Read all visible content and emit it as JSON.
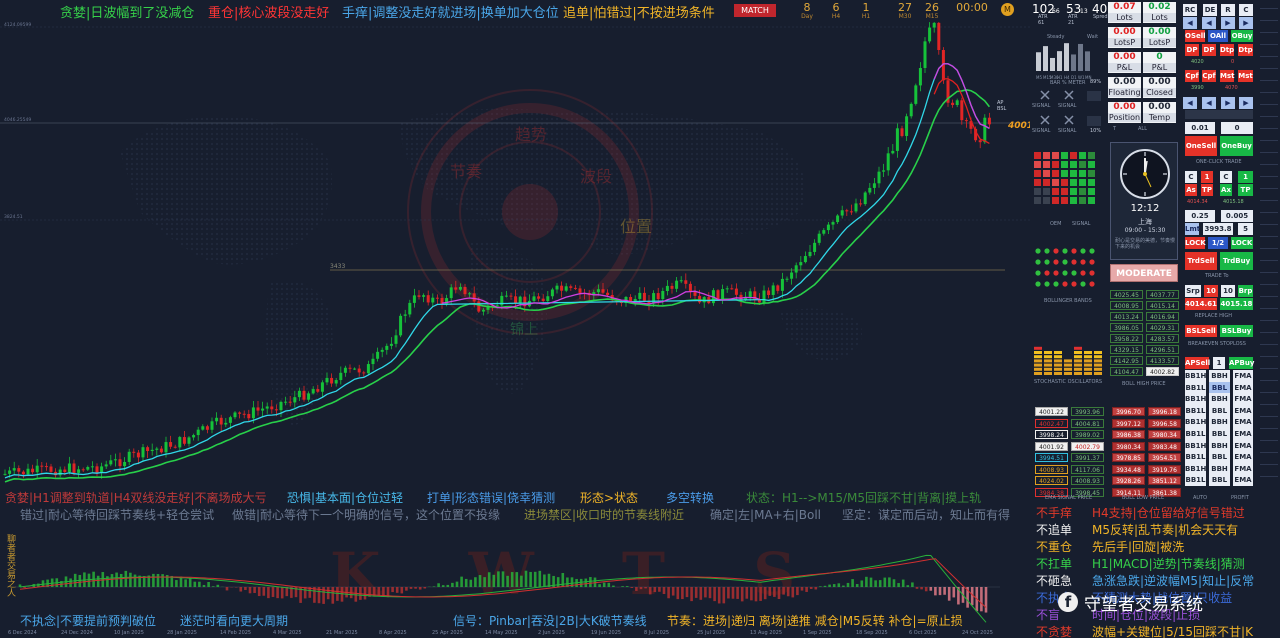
{
  "top_messages": [
    {
      "text": "贪婪|日波幅到了没减仓",
      "color": "#36d14a"
    },
    {
      "text": "重仓|核心波段没走好",
      "color": "#ff3535"
    },
    {
      "text": "手痒|调整没走好就进场|换单加大仓位",
      "color": "#4aa6e8"
    },
    {
      "text": "追单|怕错过|不按进场条件",
      "color": "#f0b428"
    }
  ],
  "match_label": "MATCH",
  "counters": [
    {
      "value": "8",
      "label": "Day"
    },
    {
      "value": "6",
      "label": "H4"
    },
    {
      "value": "1",
      "label": "H1"
    },
    {
      "value": "27",
      "label": "M30"
    },
    {
      "value": "26",
      "label": "M15"
    },
    {
      "value": "00:00",
      "label": ""
    }
  ],
  "spread_readouts": [
    {
      "value": "102",
      "sub": "66",
      "label": "ATR 61"
    },
    {
      "value": "53",
      "sub": "13",
      "label": "ATR 21"
    },
    {
      "value": "40",
      "sub": "",
      "label": "Spred"
    }
  ],
  "main_chart": {
    "price_labels": [
      "4124.09599",
      "4046.25549",
      "4001",
      "3824.51",
      "3433"
    ],
    "current_price_tag": "4001",
    "level_label": "3433",
    "watermark_ring_text": [
      "节奏",
      "趋势",
      "波段",
      "位置"
    ],
    "watermark_bottom": "锦上",
    "line_labels": [
      "AP",
      "BSL"
    ]
  },
  "strip1": [
    {
      "text": "贪婪|H1调整到轨道|H4双线没走好|不离场成大亏",
      "color": "#c03a3a"
    },
    {
      "text": "恐惧|基本面|仓位过轻",
      "color": "#47b8e8"
    },
    {
      "text": "打单|形态错误|侥幸猜测",
      "color": "#4a9be8"
    },
    {
      "text": "形态>状态",
      "color": "#f0b428"
    },
    {
      "text": "多空转换",
      "color": "#4a9be8"
    },
    {
      "text": "状态：H1-->M15/M5回踩不甘|背离|摸上轨",
      "color": "#3a8a3a"
    }
  ],
  "strip2": [
    {
      "text": "错过|耐心等待回踩节奏线+轻仓尝试",
      "color": "#6c7a92"
    },
    {
      "text": "做错|耐心等待下一个明确的信号，这个位置不投缘",
      "color": "#6c7a92"
    },
    {
      "text": "进场禁区|收口时的节奏线附近",
      "color": "#8a8a3a"
    },
    {
      "text": "确定|左|MA+右|Boll",
      "color": "#6c7a92"
    },
    {
      "text": "坚定：谋定而后动，知止而有得",
      "color": "#6c7a92"
    }
  ],
  "osc_legend": [
    {
      "l": "不手痒",
      "r": "H4支持|仓位留给好信号错过",
      "lc": "#e03a2a",
      "rc": "#e03a2a"
    },
    {
      "l": "不追单",
      "r": "M5反转|乱节奏|机会天天有",
      "lc": "#f0f0f0",
      "rc": "#f0b428"
    },
    {
      "l": "不重仓",
      "r": "先后手|回旋|被洗",
      "lc": "#f0b428",
      "rc": "#f0b428"
    },
    {
      "l": "不扛单",
      "r": "H1|MACD|逆势|节奏线|猜测",
      "lc": "#36d14a",
      "rc": "#36d14a"
    },
    {
      "l": "不砸急",
      "r": "急涨急跌|逆波幅M5|知止|反常",
      "lc": "#f0f0f0",
      "rc": "#4aa6e8"
    },
    {
      "l": "不执念",
      "r": "不猜测大势|战位置|只收益",
      "lc": "#3a6ad8",
      "rc": "#3a6ad8"
    },
    {
      "l": "不盲",
      "r": "时间|仓位|波段|止损",
      "lc": "#9a50d8",
      "rc": "#9a50d8"
    },
    {
      "l": "不贪婪",
      "r": "波幅+关键位|5/15回踩不甘|K",
      "lc": "#e03a2a",
      "rc": "#f0b428"
    }
  ],
  "bottom_msgs": [
    {
      "text": "不执念|不要提前预判破位",
      "color": "#4aa6e8"
    },
    {
      "text": "迷茫时看向更大周期",
      "color": "#4aa6e8"
    },
    {
      "text": "信号：Pinbar|吞没|2B|大K破节奏线",
      "color": "#4aa6e8"
    },
    {
      "text": "节奏：进场|递归 离场|递推 减仓|M5反转 补仓|=原止损 ",
      "color": "#f0b428"
    }
  ],
  "osc_vertical_text": "聊者者交易之人",
  "dates": [
    "6 Dec 2024",
    "24 Dec 2024",
    "10 Jan 2025",
    "28 Jan 2025",
    "14 Feb 2025",
    "4 Mar 2025",
    "21 Mar 2025",
    "8 Apr 2025",
    "25 Apr 2025",
    "14 May 2025",
    "2 Jun 2025",
    "19 Jun 2025",
    "8 Jul 2025",
    "25 Jul 2025",
    "13 Aug 2025",
    "1 Sep 2025",
    "18 Sep 2025",
    "6 Oct 2025",
    "24 Oct 2025"
  ],
  "watermark_brand": "守望者交易系统",
  "osc_watermark": "K W T S",
  "right_panel": {
    "heat_header": [
      "Steady",
      "Wait"
    ],
    "heat_bar_labels": [
      "M5",
      "M15",
      "M30",
      "H1",
      "H4",
      "D1",
      "W1",
      "MN"
    ],
    "bar_meter": "BAR % METER",
    "signal_lbls": [
      "SIGNAL",
      "SIGNAL",
      "SIGNAL",
      "SIGNAL"
    ],
    "signal_meter_vals": [
      "89%",
      "10%"
    ],
    "grid_label": "OEM",
    "signal_label": "SIGNAL",
    "bollinger_label": "BOLLINGER BANDS",
    "stochastic_label": "STOCHASTIC OSCILLATORS",
    "ema_label": "EMA SIGNAL PRICE",
    "boll_label": "BOLL LOW PRICE",
    "boll_high_label": "BOLL HIGH PRICE",
    "account_boxes": [
      {
        "v": "0.07",
        "k": "Lots",
        "cls": "red"
      },
      {
        "v": "0.02",
        "k": "Lots",
        "cls": "green"
      },
      {
        "v": "0.00",
        "k": "LotsP",
        "cls": "red"
      },
      {
        "v": "0.00",
        "k": "LotsP",
        "cls": "green"
      },
      {
        "v": "0.00",
        "k": "P&L",
        "cls": "red"
      },
      {
        "v": "0",
        "k": "P&L",
        "cls": "green"
      },
      {
        "v": "0.00",
        "k": "Floating",
        "cls": ""
      },
      {
        "v": "0.00",
        "k": "Closed",
        "cls": ""
      },
      {
        "v": "0.00",
        "k": "Position",
        "cls": "red"
      },
      {
        "v": "0.00",
        "k": "Temp",
        "cls": ""
      }
    ],
    "all_label": "ALL",
    "row_t": "T",
    "clock_time": "12:12",
    "clock_city": "上海",
    "clock_session": "09:00 - 15:30",
    "clock_note": "耐心是交易的美德，节奏慢下来的机会",
    "moderate": "MODERATE",
    "boll_prices_left": [
      "4025.45",
      "4008.95",
      "4013.24",
      "3986.05",
      "3958.22",
      "4329.15",
      "4142.95",
      "4104.47"
    ],
    "boll_prices_right": [
      "4037.77",
      "4015.14",
      "4016.94",
      "4029.31",
      "4283.57",
      "4296.51",
      "4133.57",
      "4002.82"
    ],
    "ema_table": {
      "c1": [
        "4001.22",
        "4002.47",
        "3998.24",
        "4001.92",
        "3994.51",
        "4008.93",
        "4024.02",
        "3984.38"
      ],
      "c2": [
        "3993.96",
        "4004.81",
        "3989.02",
        "4002.79",
        "3991.37",
        "4117.06",
        "4008.93",
        "3998.45"
      ],
      "c3": [
        "3996.70",
        "3997.12",
        "3986.38",
        "3980.34",
        "3978.85",
        "3934.48",
        "3928.26",
        "3914.11"
      ],
      "c4": [
        "3996.18",
        "3996.58",
        "3980.34",
        "3983.48",
        "3954.51",
        "3919.76",
        "3851.12",
        "3861.38"
      ]
    },
    "panel_buttons": {
      "row1": [
        "RC",
        "DE",
        "R",
        "C"
      ],
      "osell": "OSell",
      "oall": "OAll",
      "obuy": "OBuy",
      "dp": "DP",
      "dp2": "DP",
      "dtp": "Dtp",
      "dtp2": "Dtp",
      "val1": "4020",
      "val2": "0",
      "cpf": "Cpf",
      "cpf2": "Cpf",
      "mst": "Mst",
      "mst2": "Mst",
      "val3": "3990",
      "val4": "4070",
      "val5": "0.01",
      "val6": "0",
      "onesell": "OneSell",
      "onebuy": "OneBuy",
      "one_click": "ONE-CLICK  TRADE",
      "c": "C",
      "one": "1",
      "as": "As",
      "tp": "TP",
      "ax": "Ax",
      "tp2": "TP",
      "val7": "4014.34",
      "val8": "4015.18",
      "val9": "0.25",
      "val10": "0.005",
      "lmt": "Lmt",
      "val11": "3993.8",
      "val12": "5",
      "lock": "LOCK",
      "half": "1/2",
      "lock2": "LOCK",
      "trdsell": "TrdSell",
      "trdbuy": "TrdBuy",
      "trade_to": "TRADE To",
      "srp": "Srp",
      "ten": "10",
      "ten2": "10",
      "brp": "Brp",
      "val13": "4014.61",
      "val14": "4015.18",
      "replace": "REPLACE   HIGH",
      "bslsell": "BSLSell",
      "bslbuy": "BSLBuy",
      "breakeven": "BREAKEVEN  STOPLOSS",
      "apsell": "APSell",
      "apbuy": "APBuy",
      "bb_rows": [
        [
          "BB1H",
          "BBH",
          "FMA"
        ],
        [
          "BB1L",
          "BBL",
          "EMA"
        ],
        [
          "BB1H",
          "BBH",
          "FMA"
        ],
        [
          "BB1L",
          "BBL",
          "EMA"
        ],
        [
          "BB1H",
          "BBH",
          "EMA"
        ],
        [
          "BB1L",
          "BBL",
          "EMA"
        ],
        [
          "BB1H",
          "BBH",
          "EMA"
        ],
        [
          "BB1L",
          "BBL",
          "EMA"
        ],
        [
          "BB1H",
          "BBH",
          "FMA"
        ],
        [
          "BB1L",
          "BBL",
          "EMA"
        ]
      ],
      "auto": "AUTO",
      "profit": "PROFIT"
    }
  },
  "colors": {
    "bull": "#16c23a",
    "bear": "#e12525",
    "fast": "#d040e0",
    "slow": "#28d04a",
    "cyan": "#30d8e8"
  }
}
